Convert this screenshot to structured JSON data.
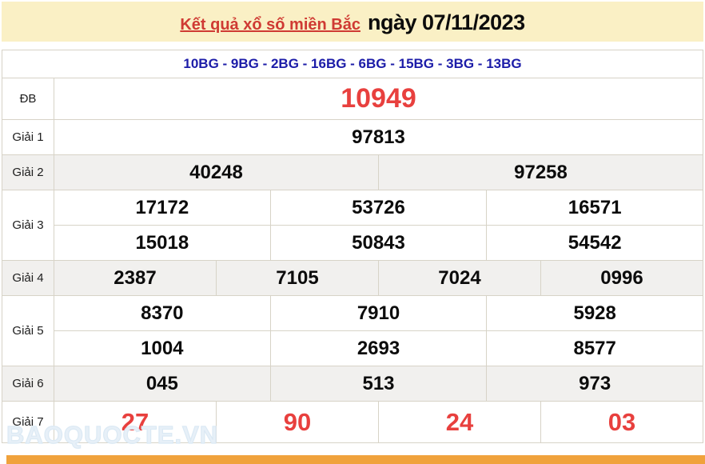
{
  "header": {
    "title_link": "Kết quả xổ số miền Bắc",
    "title_date": "ngày 07/11/2023"
  },
  "codes_line": "10BG - 9BG - 2BG - 16BG - 6BG - 15BG - 3BG - 13BG",
  "table": {
    "rows": [
      {
        "label": "ĐB",
        "cells": [
          "10949"
        ]
      },
      {
        "label": "Giải 1",
        "cells": [
          "97813"
        ]
      },
      {
        "label": "Giải 2",
        "cells": [
          "40248",
          "97258"
        ]
      },
      {
        "label": "Giải 3",
        "lines": [
          [
            "17172",
            "53726",
            "16571"
          ],
          [
            "15018",
            "50843",
            "54542"
          ]
        ]
      },
      {
        "label": "Giải 4",
        "cells": [
          "2387",
          "7105",
          "7024",
          "0996"
        ]
      },
      {
        "label": "Giải 5",
        "lines": [
          [
            "8370",
            "7910",
            "5928"
          ],
          [
            "1004",
            "2693",
            "8577"
          ]
        ]
      },
      {
        "label": "Giải 6",
        "cells": [
          "045",
          "513",
          "973"
        ]
      },
      {
        "label": "Giải 7",
        "cells": [
          "27",
          "90",
          "24",
          "03"
        ]
      }
    ]
  },
  "watermark": "BAOQUOCTE.VN",
  "colors": {
    "cream": "#FAF0C5",
    "navy": "#1C1CA8",
    "accent_red": "#E8403E",
    "link_red": "#CF3A33",
    "row_gray": "#F1F0EE",
    "border": "#D7D3C7",
    "orange": "#F0A23C"
  }
}
